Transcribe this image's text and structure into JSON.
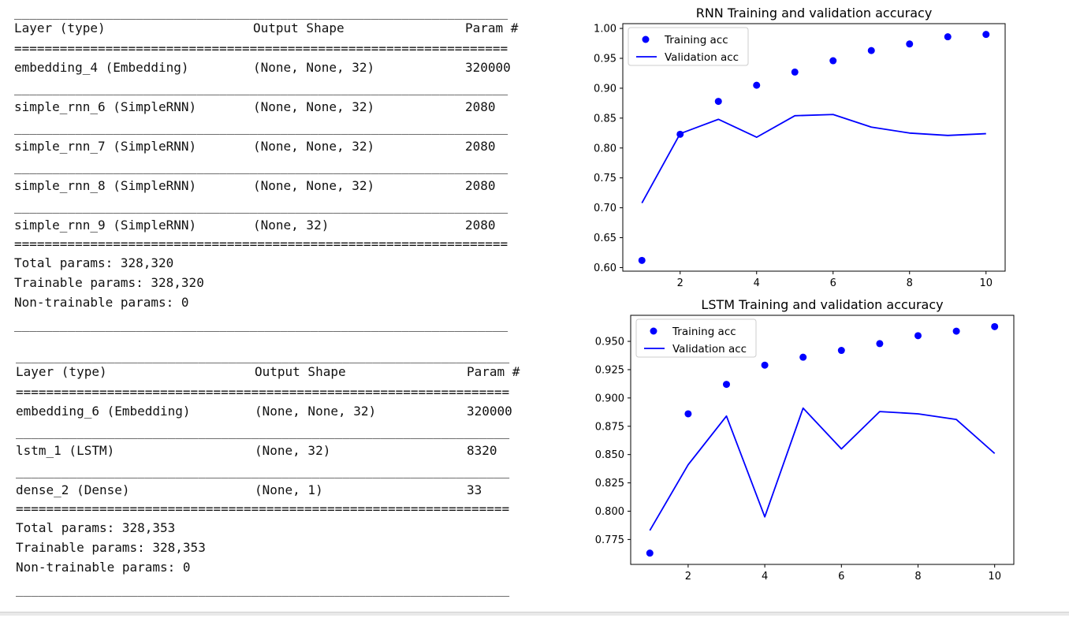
{
  "summaries": [
    {
      "header": {
        "layer": "Layer (type)",
        "shape": "Output Shape",
        "param": "Param #"
      },
      "rows": [
        {
          "layer": "embedding_4 (Embedding)",
          "shape": "(None, None, 32)",
          "param": "320000"
        },
        {
          "layer": "simple_rnn_6 (SimpleRNN)",
          "shape": "(None, None, 32)",
          "param": "2080"
        },
        {
          "layer": "simple_rnn_7 (SimpleRNN)",
          "shape": "(None, None, 32)",
          "param": "2080"
        },
        {
          "layer": "simple_rnn_8 (SimpleRNN)",
          "shape": "(None, None, 32)",
          "param": "2080"
        },
        {
          "layer": "simple_rnn_9 (SimpleRNN)",
          "shape": "(None, 32)",
          "param": "2080"
        }
      ],
      "totals": [
        "Total params: 328,320",
        "Trainable params: 328,320",
        "Non-trainable params: 0"
      ]
    },
    {
      "header": {
        "layer": "Layer (type)",
        "shape": "Output Shape",
        "param": "Param #"
      },
      "rows": [
        {
          "layer": "embedding_6 (Embedding)",
          "shape": "(None, None, 32)",
          "param": "320000"
        },
        {
          "layer": "lstm_1 (LSTM)",
          "shape": "(None, 32)",
          "param": "8320"
        },
        {
          "layer": "dense_2 (Dense)",
          "shape": "(None, 1)",
          "param": "33"
        }
      ],
      "totals": [
        "Total params: 328,353",
        "Trainable params: 328,353",
        "Non-trainable params: 0"
      ]
    }
  ],
  "colors": {
    "series": "#0000ff",
    "text": "#111111"
  },
  "chart_data": [
    {
      "type": "scatter+line",
      "title": "RNN Training and validation accuracy",
      "x": [
        1,
        2,
        3,
        4,
        5,
        6,
        7,
        8,
        9,
        10
      ],
      "series": [
        {
          "name": "Training acc",
          "style": "dots",
          "values": [
            0.612,
            0.823,
            0.878,
            0.905,
            0.927,
            0.946,
            0.963,
            0.974,
            0.986,
            0.99
          ]
        },
        {
          "name": "Validation acc",
          "style": "line",
          "values": [
            0.708,
            0.824,
            0.848,
            0.818,
            0.854,
            0.856,
            0.835,
            0.825,
            0.821,
            0.824
          ]
        }
      ],
      "xlim": [
        0.5,
        10.5
      ],
      "ylim": [
        0.594,
        1.008
      ],
      "xticks": [
        2,
        4,
        6,
        8,
        10
      ],
      "yticks": [
        0.6,
        0.65,
        0.7,
        0.75,
        0.8,
        0.85,
        0.9,
        0.95,
        1.0
      ],
      "ytick_labels": [
        "0.60",
        "0.65",
        "0.70",
        "0.75",
        "0.80",
        "0.85",
        "0.90",
        "0.95",
        "1.00"
      ],
      "legend": "upper left",
      "grid": false
    },
    {
      "type": "scatter+line",
      "title": "LSTM Training and validation accuracy",
      "x": [
        1,
        2,
        3,
        4,
        5,
        6,
        7,
        8,
        9,
        10
      ],
      "series": [
        {
          "name": "Training acc",
          "style": "dots",
          "values": [
            0.763,
            0.886,
            0.912,
            0.929,
            0.936,
            0.942,
            0.948,
            0.955,
            0.959,
            0.963
          ]
        },
        {
          "name": "Validation acc",
          "style": "line",
          "values": [
            0.783,
            0.841,
            0.884,
            0.795,
            0.891,
            0.855,
            0.888,
            0.886,
            0.881,
            0.851
          ]
        }
      ],
      "xlim": [
        0.5,
        10.5
      ],
      "ylim": [
        0.753,
        0.973
      ],
      "xticks": [
        2,
        4,
        6,
        8,
        10
      ],
      "yticks": [
        0.775,
        0.8,
        0.825,
        0.85,
        0.875,
        0.9,
        0.925,
        0.95
      ],
      "ytick_labels": [
        "0.775",
        "0.800",
        "0.825",
        "0.850",
        "0.875",
        "0.900",
        "0.925",
        "0.950"
      ],
      "legend": "upper left",
      "grid": false
    }
  ]
}
